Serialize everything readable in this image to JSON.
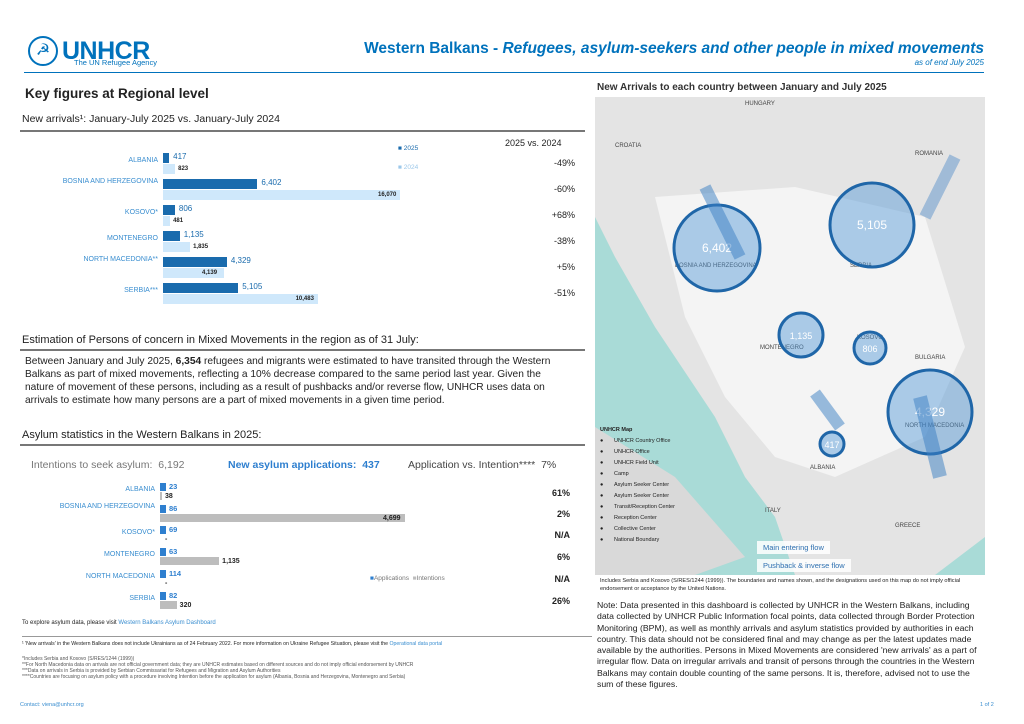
{
  "header": {
    "logo": "UNHCR",
    "logo_sub": "The UN Refugee Agency",
    "title_main": "Western Balkans - ",
    "title_italic": "Refugees, asylum-seekers and other people in mixed movements",
    "subtitle": "as of end July 2025"
  },
  "key_figures": {
    "title": "Key figures at Regional level",
    "arrivals_title": "New arrivals¹: January-July 2025 vs. January-July 2024",
    "comparison_header": "2025 vs. 2024"
  },
  "chart_data": [
    {
      "type": "bar",
      "title": "New arrivals: January-July 2025 vs. January-July 2024",
      "categories": [
        "ALBANIA",
        "BOSNIA AND HERZEGOVINA",
        "KOSOVO*",
        "MONTENEGRO",
        "NORTH MACEDONIA**",
        "SERBIA***"
      ],
      "series": [
        {
          "name": "2025",
          "values": [
            417,
            6402,
            806,
            1135,
            4329,
            5105
          ],
          "labels": [
            "417",
            "6,402",
            "806",
            "1,135",
            "4,329",
            "5,105"
          ],
          "color": "#1a6bad"
        },
        {
          "name": "2024",
          "values": [
            823,
            16070,
            481,
            1835,
            4139,
            10483
          ],
          "labels": [
            "823",
            "16,070",
            "481",
            "1,835",
            "4,139",
            "10,483"
          ],
          "color": "#cfe8fb"
        }
      ],
      "change": [
        "-49%",
        "-60%",
        "+68%",
        "-38%",
        "+5%",
        "-51%"
      ],
      "xlim": [
        0,
        16070
      ],
      "legend": "top-right"
    },
    {
      "type": "bar",
      "title": "Asylum statistics in the Western Balkans in 2025",
      "categories": [
        "ALBANIA",
        "BOSNIA AND HERZEGOVINA",
        "KOSOVO*",
        "MONTENEGRO",
        "NORTH MACEDONIA",
        "SERBIA"
      ],
      "series": [
        {
          "name": "Applications",
          "values": [
            23,
            86,
            69,
            63,
            114,
            82
          ],
          "labels": [
            "23",
            "86",
            "69",
            "63",
            "114",
            "82"
          ],
          "color": "#2e7fcf"
        },
        {
          "name": "Intentions",
          "values": [
            38,
            4699,
            0,
            1135,
            0,
            320
          ],
          "labels": [
            "38",
            "4,699",
            "-",
            "1,135",
            "-",
            "320"
          ],
          "color": "#bdbdbd"
        }
      ],
      "ratio": [
        "61%",
        "2%",
        "N/A",
        "6%",
        "N/A",
        "26%"
      ],
      "xlim": [
        0,
        4699
      ],
      "legend": "right"
    }
  ],
  "mixed": {
    "title": "Estimation of Persons of concern in Mixed Movements in the region as of 31 July:",
    "p1": "Between January and July 2025, ",
    "p_bold": "6,354",
    "p2": " refugees and migrants were estimated to have transited through the Western Balkans as part of mixed movements, reflecting a 10% decrease compared to the same period last year. Given the nature of movement of these persons, including as a result of pushbacks and/or reverse flow, UNHCR uses data on arrivals to estimate how many persons are a part of mixed movements in a given time period."
  },
  "asylum": {
    "title": "Asylum statistics in the Western Balkans in 2025:",
    "intentions_label": "Intentions to seek asylum:",
    "intentions_value": "6,192",
    "apps_label": "New asylum applications:",
    "apps_value": "437",
    "ratio_label": "Application vs. Intention****",
    "ratio_value": "7%",
    "explore": "To explore asylum data, please visit ",
    "explore_link": "Western Balkans Asylum Dashboard"
  },
  "footnotes": {
    "f1": "¹ 'New arrivals' in the Western Balkans does not include Ukrainians as of 24 February 2022. For more information on Ukraine Refugee Situation, please visit the ",
    "f1_link": "Operational data portal",
    "f2": "*Includes Serbia and Kosovo (S/RES/1244 (1999))",
    "f3": "**For North Macedonia data on arrivals are not official government data; they are UNHCR estimates based on different sources and do not imply official endorsement by UNHCR",
    "f4": "***Data on arrivals in Serbia is provided by Serbian Commissariat for Refugees and Migration and Asylum Authorities",
    "f5": "****Countries are focusing on asylum policy with a procedure involving Intention before the application for asylum (Albania, Bosnia and Herzegovina, Montenegro and Serbia)",
    "contact": "Contact: viena@unhcr.org",
    "page": "1 of 2"
  },
  "map": {
    "title": "New Arrivals to each country between January and July 2025",
    "countries": [
      "HUNGARY",
      "CROATIA",
      "ROMANIA",
      "BOSNIA AND HERZEGOVINA",
      "SERBIA",
      "MONTENEGRO",
      "KOSOVO",
      "BULGARIA",
      "NORTH MACEDONIA",
      "ALBANIA",
      "ITALY",
      "GREECE"
    ],
    "bubbles": [
      "6,402",
      "5,105",
      "1,135",
      "806",
      "4,329",
      "417"
    ],
    "legend_title": "UNHCR Map",
    "legend_items": [
      "UNHCR Country Office",
      "UNHCR Office",
      "UNHCR Field Unit",
      "Camp",
      "Asylum Seeker Center",
      "Asylum Seeker Center",
      "Transit/Reception Center",
      "Reception Center",
      "Collective Center",
      "National Boundary"
    ],
    "flow_main": "Main entering flow",
    "flow_push": "Pushback & inverse flow",
    "disclaimer": "Includes Serbia and Kosovo (S/RES/1244 (1999)). The boundaries and names shown, and the designations used on this map do not imply official endorsement or acceptance by the United Nations."
  },
  "note": "Note: Data presented in this dashboard is collected by UNHCR in the Western Balkans, including data collected by UNHCR Public Information focal points, data collected through Border Protection Monitoring (BPM), as well as monthly arrivals and asylum statistics provided by authorities in each country. This data should not be considered final and may change as per the latest updates made available by the authorities. Persons in Mixed Movements are considered 'new arrivals' as a part of irregular flow. Data on irregular arrivals and transit of persons through the countries in the Western Balkans may contain double counting of the same persons. It is, therefore, advised not to use the sum of these figures."
}
